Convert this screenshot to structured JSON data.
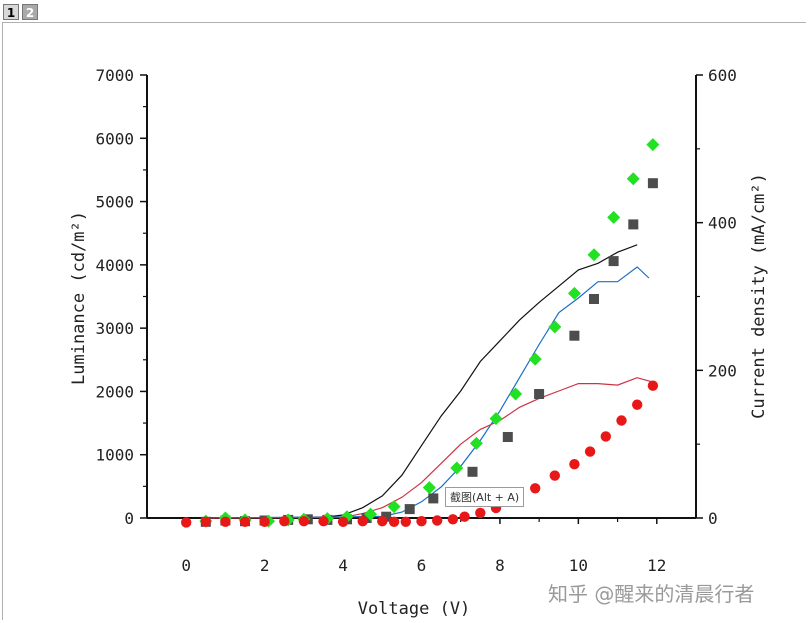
{
  "tabs": [
    {
      "label": "1"
    },
    {
      "label": "2"
    }
  ],
  "tooltip": "截图(Alt + A)",
  "watermark": "知乎 @醒来的清晨行者",
  "chart_data": {
    "type": "scatter",
    "xlabel": "Voltage (V)",
    "ylabel_left": "Luminance (cd/m²)",
    "ylabel_right": "Current density (mA/cm²)",
    "xlim": [
      -1,
      13
    ],
    "ylim_left": [
      0,
      7000
    ],
    "ylim_right": [
      0,
      600
    ],
    "x_ticks": [
      "0",
      "2",
      "4",
      "6",
      "8",
      "10",
      "12"
    ],
    "y_ticks_left": [
      "0",
      "1000",
      "2000",
      "3000",
      "4000",
      "5000",
      "6000",
      "7000"
    ],
    "y_ticks_right": [
      "0",
      "200",
      "400",
      "600"
    ],
    "grid": false,
    "series": [
      {
        "marker": "square",
        "color": "#4d4d4d",
        "axis": "left",
        "x": [
          0.5,
          1.0,
          1.5,
          2.0,
          2.6,
          3.1,
          3.6,
          4.1,
          4.6,
          5.1,
          5.7,
          6.3,
          7.3,
          8.2,
          9.0,
          9.9,
          10.4,
          10.9,
          11.4,
          11.9
        ],
        "y": [
          -60,
          -40,
          -50,
          -40,
          -30,
          -20,
          -30,
          -20,
          0,
          20,
          140,
          310,
          730,
          1280,
          1960,
          2880,
          3460,
          4060,
          4640,
          5290
        ]
      },
      {
        "marker": "diamond",
        "color": "#22e022",
        "axis": "left",
        "x": [
          0.5,
          1.0,
          1.5,
          2.1,
          2.6,
          3.0,
          3.6,
          4.1,
          4.7,
          5.3,
          6.2,
          6.9,
          7.4,
          7.9,
          8.4,
          8.9,
          9.4,
          9.9,
          10.4,
          10.9,
          11.4,
          11.9
        ],
        "y": [
          -50,
          0,
          -30,
          -50,
          -30,
          -20,
          -10,
          20,
          60,
          180,
          480,
          790,
          1180,
          1570,
          1960,
          2510,
          3020,
          3550,
          4160,
          4750,
          5360,
          5900
        ]
      },
      {
        "marker": "circle",
        "color": "#e81818",
        "axis": "left",
        "x": [
          0.0,
          0.5,
          1.0,
          1.5,
          2.0,
          2.5,
          3.0,
          3.5,
          4.0,
          4.5,
          5.0,
          5.3,
          5.6,
          6.0,
          6.4,
          6.8,
          7.1,
          7.5,
          7.9,
          8.4,
          8.9,
          9.4,
          9.9,
          10.3,
          10.7,
          11.1,
          11.5,
          11.9
        ],
        "y": [
          -70,
          -60,
          -60,
          -60,
          -60,
          -50,
          -50,
          -50,
          -60,
          -50,
          -50,
          -60,
          -60,
          -50,
          -40,
          -20,
          20,
          80,
          160,
          290,
          470,
          670,
          850,
          1050,
          1290,
          1540,
          1790,
          2090
        ]
      },
      {
        "line": true,
        "color": "#111111",
        "axis": "right",
        "x": [
          0.5,
          3.5,
          4.0,
          4.5,
          5.0,
          5.5,
          6.0,
          6.5,
          7.0,
          7.5,
          8.0,
          8.5,
          9.0,
          9.5,
          10.0,
          10.5,
          11.0,
          11.5
        ],
        "y": [
          0,
          1,
          4,
          14,
          30,
          58,
          98,
          138,
          172,
          212,
          240,
          268,
          292,
          314,
          336,
          345,
          360,
          370
        ]
      },
      {
        "line": true,
        "color": "#1a6fc7",
        "axis": "right",
        "x": [
          0.5,
          5.0,
          5.5,
          6.0,
          6.5,
          7.0,
          7.5,
          8.0,
          8.5,
          9.0,
          9.5,
          10.0,
          10.5,
          11.0,
          11.5,
          11.8
        ],
        "y": [
          0,
          2,
          8,
          22,
          42,
          70,
          105,
          145,
          190,
          235,
          278,
          298,
          320,
          320,
          340,
          325
        ]
      },
      {
        "line": true,
        "color": "#cc3344",
        "axis": "right",
        "x": [
          0.5,
          4.0,
          4.5,
          5.0,
          5.5,
          6.0,
          6.5,
          7.0,
          7.5,
          8.0,
          8.5,
          9.0,
          9.5,
          10.0,
          10.5,
          11.0,
          11.5,
          11.9
        ],
        "y": [
          0,
          1,
          6,
          14,
          28,
          48,
          74,
          100,
          120,
          132,
          150,
          162,
          172,
          182,
          182,
          180,
          190,
          184
        ]
      }
    ]
  }
}
